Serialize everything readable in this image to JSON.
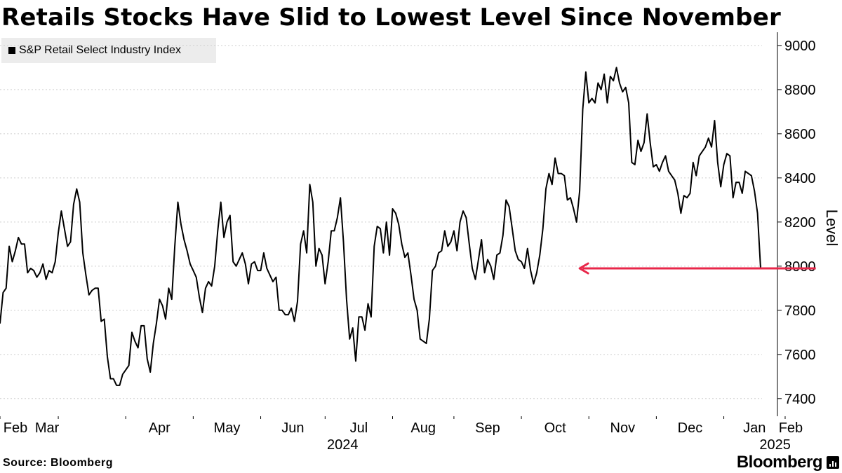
{
  "title": "Retails Stocks Have Slid to Lowest Level Since November",
  "source": "Source: Bloomberg",
  "brand": "Bloomberg",
  "brand_icon": "bar-chart-icon",
  "colors": {
    "line": "#000000",
    "arrow": "#e8274a",
    "grid": "#cfcfcf",
    "legend_bg": "#ececec"
  },
  "chart_data": {
    "type": "line",
    "title": "Retails Stocks Have Slid to Lowest Level Since November",
    "ylabel": "Level",
    "ylim": [
      7320,
      9060
    ],
    "yticks": [
      7400,
      7600,
      7800,
      8000,
      8200,
      8400,
      8600,
      8800,
      9000
    ],
    "y_axis_side": "right",
    "grid": "horizontal dotted",
    "legend": "top-left",
    "series": [
      {
        "name": "S&P Retail Select Industry Index",
        "values": [
          7740,
          7880,
          7900,
          8090,
          8020,
          8070,
          8130,
          8100,
          8100,
          7970,
          7990,
          7980,
          7950,
          7970,
          8010,
          7940,
          7980,
          7970,
          8020,
          8150,
          8250,
          8170,
          8090,
          8110,
          8280,
          8350,
          8290,
          8060,
          7960,
          7870,
          7890,
          7900,
          7900,
          7750,
          7760,
          7590,
          7490,
          7490,
          7460,
          7460,
          7510,
          7530,
          7550,
          7700,
          7660,
          7630,
          7730,
          7730,
          7580,
          7520,
          7650,
          7740,
          7850,
          7820,
          7760,
          7900,
          7850,
          8090,
          8290,
          8190,
          8120,
          8070,
          8010,
          7980,
          7950,
          7860,
          7790,
          7900,
          7930,
          7910,
          8000,
          8160,
          8290,
          8130,
          8200,
          8230,
          8020,
          8000,
          8030,
          8060,
          8010,
          7920,
          8010,
          8020,
          7980,
          7980,
          8060,
          7990,
          7960,
          7930,
          7950,
          7800,
          7800,
          7780,
          7780,
          7810,
          7750,
          7840,
          8100,
          8160,
          8060,
          8370,
          8290,
          8000,
          8080,
          8050,
          7920,
          8020,
          8160,
          8160,
          8220,
          8310,
          8110,
          7850,
          7670,
          7720,
          7570,
          7770,
          7770,
          7710,
          7830,
          7770,
          8090,
          8180,
          8170,
          8060,
          8200,
          8050,
          8260,
          8240,
          8190,
          8100,
          8040,
          8060,
          7960,
          7850,
          7800,
          7670,
          7660,
          7650,
          7760,
          7980,
          8000,
          8060,
          8070,
          8160,
          8090,
          8110,
          8160,
          8070,
          8200,
          8250,
          8220,
          8100,
          7990,
          7940,
          8030,
          8120,
          7970,
          8030,
          8000,
          7940,
          8050,
          8060,
          8140,
          8300,
          8270,
          8170,
          8070,
          8030,
          8020,
          7990,
          8080,
          7980,
          7920,
          7970,
          8050,
          8170,
          8350,
          8420,
          8370,
          8490,
          8420,
          8420,
          8410,
          8300,
          8310,
          8260,
          8200,
          8340,
          8710,
          8880,
          8740,
          8760,
          8740,
          8830,
          8800,
          8870,
          8740,
          8860,
          8840,
          8900,
          8830,
          8790,
          8810,
          8740,
          8470,
          8460,
          8570,
          8520,
          8560,
          8690,
          8560,
          8450,
          8460,
          8430,
          8470,
          8500,
          8430,
          8410,
          8390,
          8330,
          8240,
          8320,
          8310,
          8330,
          8470,
          8410,
          8500,
          8520,
          8540,
          8580,
          8540,
          8660,
          8470,
          8360,
          8460,
          8510,
          8500,
          8310,
          8380,
          8380,
          8330,
          8430,
          8420,
          8410,
          8340,
          8240,
          7990
        ]
      }
    ],
    "x_labels": [
      "Feb",
      "Mar",
      "Apr",
      "May",
      "Jun",
      "Jul",
      "Aug",
      "Sep",
      "Oct",
      "Nov",
      "Dec",
      "Jan",
      "Feb"
    ],
    "x_labels_pos": [
      0,
      19,
      41,
      63,
      85,
      106,
      128,
      148,
      170,
      192,
      214,
      236,
      256
    ],
    "x_year_labels": [
      "2024",
      "2025"
    ],
    "x_year_labels_pos": [
      114,
      255
    ],
    "annotation": {
      "type": "arrow",
      "from": {
        "x": 266,
        "y": 7990
      },
      "to": {
        "x": 189,
        "y": 7990
      }
    }
  }
}
